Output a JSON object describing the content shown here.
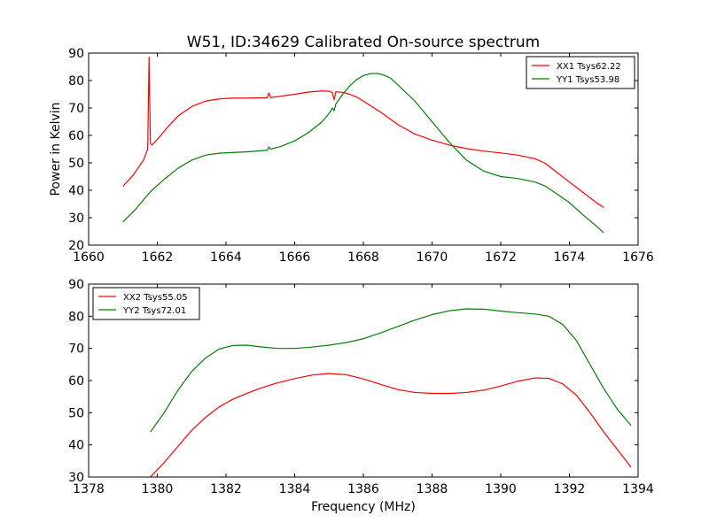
{
  "figure": {
    "title": "W51, ID:34629 Calibrated On-source spectrum",
    "background": "#ffffff"
  },
  "chart_data": [
    {
      "type": "line",
      "title": "W51, ID:34629 Calibrated On-source spectrum",
      "xlabel": "",
      "ylabel": "Power in Kelvin",
      "xlim": [
        1660,
        1676
      ],
      "ylim": [
        20,
        90
      ],
      "xticks": [
        1660,
        1662,
        1664,
        1666,
        1668,
        1670,
        1672,
        1674,
        1676
      ],
      "yticks": [
        20,
        30,
        40,
        50,
        60,
        70,
        80,
        90
      ],
      "xtick_labels": [
        "1660",
        "1662",
        "1664",
        "1666",
        "1668",
        "1670",
        "1672",
        "1674",
        "1676"
      ],
      "ytick_labels": [
        "20",
        "30",
        "40",
        "50",
        "60",
        "70",
        "80",
        "90"
      ],
      "grid": false,
      "legend_position": "top-right",
      "series": [
        {
          "name": "XX1 Tsys62.22",
          "color": "#ff0000",
          "x": [
            1661.0,
            1661.3,
            1661.6,
            1661.72,
            1661.76,
            1661.8,
            1661.85,
            1662.0,
            1662.3,
            1662.6,
            1663.0,
            1663.4,
            1663.8,
            1664.2,
            1664.6,
            1665.0,
            1665.2,
            1665.25,
            1665.3,
            1665.6,
            1666.0,
            1666.4,
            1666.8,
            1667.0,
            1667.1,
            1667.15,
            1667.2,
            1667.4,
            1667.6,
            1667.8,
            1668.0,
            1668.5,
            1669.0,
            1669.5,
            1670.0,
            1670.5,
            1671.0,
            1671.5,
            1672.0,
            1672.5,
            1673.0,
            1673.3,
            1673.6,
            1674.0,
            1674.4,
            1674.8,
            1675.0
          ],
          "y": [
            41.5,
            45.5,
            51.0,
            55.0,
            88.5,
            57.0,
            56.5,
            58.5,
            63.0,
            67.0,
            70.5,
            72.5,
            73.3,
            73.6,
            73.6,
            73.7,
            73.7,
            75.5,
            73.8,
            74.3,
            75.0,
            75.8,
            76.2,
            76.1,
            75.6,
            73.0,
            75.9,
            75.7,
            75.0,
            74.0,
            72.5,
            68.5,
            64.0,
            60.5,
            58.3,
            56.5,
            55.2,
            54.3,
            53.6,
            52.8,
            51.5,
            49.8,
            46.9,
            43.0,
            39.2,
            35.3,
            33.8
          ]
        },
        {
          "name": "YY1 Tsys53.98",
          "color": "#008000",
          "x": [
            1661.0,
            1661.4,
            1661.8,
            1662.2,
            1662.6,
            1663.0,
            1663.4,
            1663.8,
            1664.2,
            1664.6,
            1665.0,
            1665.2,
            1665.25,
            1665.3,
            1665.6,
            1666.0,
            1666.4,
            1666.8,
            1667.0,
            1667.1,
            1667.15,
            1667.2,
            1667.4,
            1667.6,
            1667.8,
            1668.0,
            1668.2,
            1668.4,
            1668.6,
            1668.8,
            1669.0,
            1669.5,
            1670.0,
            1670.5,
            1671.0,
            1671.5,
            1672.0,
            1672.5,
            1673.0,
            1673.3,
            1673.6,
            1674.0,
            1674.4,
            1674.8,
            1675.0
          ],
          "y": [
            28.5,
            33.5,
            39.5,
            44.0,
            48.0,
            51.0,
            52.8,
            53.5,
            53.8,
            54.0,
            54.4,
            54.6,
            55.8,
            55.0,
            56.0,
            58.0,
            61.0,
            65.0,
            68.0,
            70.0,
            69.0,
            71.5,
            75.0,
            78.0,
            80.3,
            81.8,
            82.5,
            82.6,
            82.0,
            80.8,
            78.5,
            72.5,
            65.0,
            57.5,
            51.0,
            47.0,
            45.0,
            44.3,
            43.0,
            41.5,
            39.0,
            35.5,
            31.0,
            26.8,
            24.5
          ]
        }
      ]
    },
    {
      "type": "line",
      "title": "",
      "xlabel": "Frequency (MHz)",
      "ylabel": "",
      "xlim": [
        1378,
        1394
      ],
      "ylim": [
        30,
        90
      ],
      "xticks": [
        1378,
        1380,
        1382,
        1384,
        1386,
        1388,
        1390,
        1392,
        1394
      ],
      "yticks": [
        30,
        40,
        50,
        60,
        70,
        80,
        90
      ],
      "xtick_labels": [
        "1378",
        "1380",
        "1382",
        "1384",
        "1386",
        "1388",
        "1390",
        "1392",
        "1394"
      ],
      "ytick_labels": [
        "30",
        "40",
        "50",
        "60",
        "70",
        "80",
        "90"
      ],
      "grid": false,
      "legend_position": "top-left",
      "series": [
        {
          "name": "XX2 Tsys55.05",
          "color": "#ff0000",
          "x": [
            1379.8,
            1380.2,
            1380.6,
            1381.0,
            1381.4,
            1381.8,
            1382.2,
            1382.6,
            1383.0,
            1383.5,
            1384.0,
            1384.5,
            1385.0,
            1385.5,
            1386.0,
            1386.5,
            1387.0,
            1387.5,
            1388.0,
            1388.5,
            1389.0,
            1389.5,
            1390.0,
            1390.5,
            1391.0,
            1391.4,
            1391.8,
            1392.2,
            1392.6,
            1393.0,
            1393.4,
            1393.8
          ],
          "y": [
            30.0,
            34.5,
            39.5,
            44.5,
            48.5,
            51.8,
            54.2,
            56.0,
            57.6,
            59.3,
            60.6,
            61.7,
            62.2,
            61.8,
            60.5,
            58.8,
            57.2,
            56.3,
            56.0,
            56.0,
            56.3,
            57.0,
            58.3,
            59.8,
            60.8,
            60.7,
            59.0,
            55.5,
            50.0,
            44.0,
            38.5,
            33.0
          ]
        },
        {
          "name": "YY2 Tsys72.01",
          "color": "#008000",
          "x": [
            1379.8,
            1380.2,
            1380.6,
            1381.0,
            1381.4,
            1381.8,
            1382.2,
            1382.6,
            1383.0,
            1383.5,
            1384.0,
            1384.5,
            1385.0,
            1385.5,
            1386.0,
            1386.5,
            1387.0,
            1387.5,
            1388.0,
            1388.5,
            1389.0,
            1389.5,
            1390.0,
            1390.5,
            1391.0,
            1391.4,
            1391.8,
            1392.2,
            1392.6,
            1393.0,
            1393.4,
            1393.8
          ],
          "y": [
            44.0,
            50.0,
            57.0,
            62.8,
            67.0,
            69.8,
            70.9,
            71.0,
            70.5,
            70.0,
            70.0,
            70.4,
            71.0,
            71.8,
            73.0,
            74.8,
            76.8,
            78.8,
            80.5,
            81.7,
            82.3,
            82.2,
            81.6,
            81.1,
            80.7,
            80.0,
            77.5,
            72.5,
            65.0,
            57.5,
            51.0,
            46.0
          ]
        }
      ]
    }
  ]
}
